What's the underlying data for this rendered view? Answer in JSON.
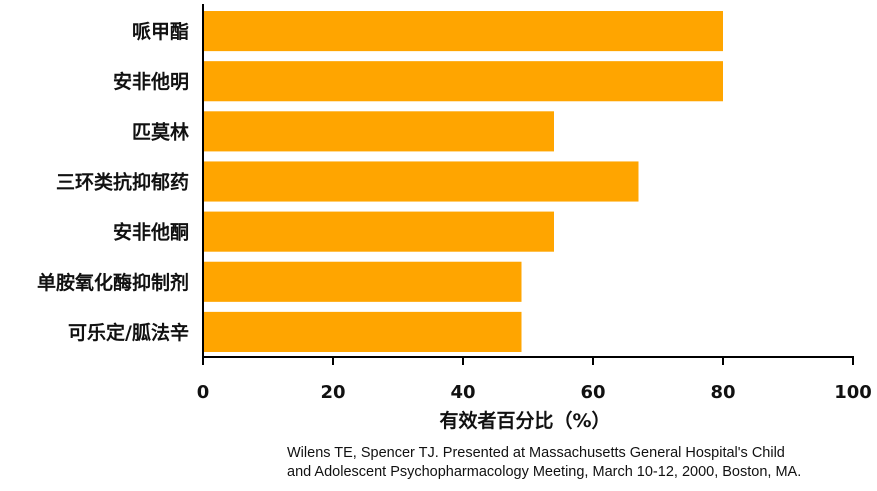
{
  "chart_data": {
    "type": "bar",
    "orientation": "horizontal",
    "categories": [
      "哌甲酯",
      "安非他明",
      "匹莫林",
      "三环类抗抑郁药",
      "安非他酮",
      "单胺氧化酶抑制剂",
      "可乐定/胍法辛"
    ],
    "values": [
      80,
      80,
      54,
      67,
      54,
      49,
      49
    ],
    "xlabel": "有效者百分比（%）",
    "ylabel": "",
    "xlim": [
      0,
      100
    ],
    "xticks": [
      "0",
      "20",
      "40",
      "60",
      "80",
      "100"
    ],
    "grid": false,
    "bar_color": "#FFA500"
  },
  "source": {
    "line1": "Wilens TE, Spencer TJ. Presented at Massachusetts General Hospital's Child",
    "line2": "and Adolescent Psychopharmacology Meeting, March 10-12, 2000, Boston, MA."
  }
}
